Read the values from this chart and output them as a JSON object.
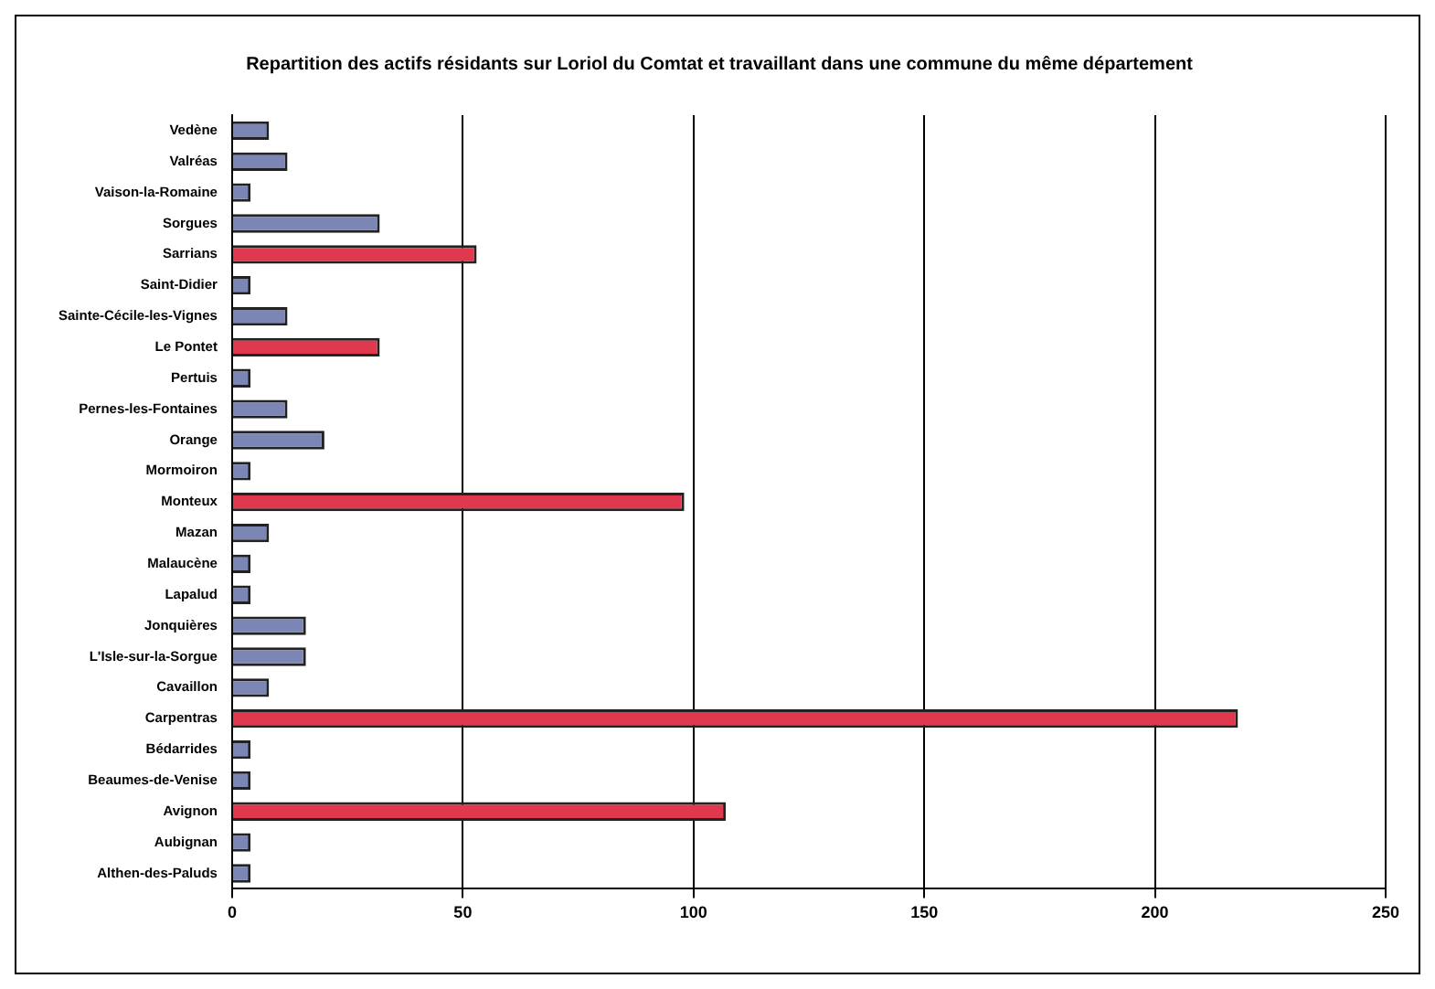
{
  "chart_data": {
    "type": "bar",
    "orientation": "horizontal",
    "title": "Repartition des actifs résidants sur Loriol du Comtat et travaillant dans une commune du même département",
    "categories": [
      "Vedène",
      "Valréas",
      "Vaison-la-Romaine",
      "Sorgues",
      "Sarrians",
      "Saint-Didier",
      "Sainte-Cécile-les-Vignes",
      "Le Pontet",
      "Pertuis",
      "Pernes-les-Fontaines",
      "Orange",
      "Mormoiron",
      "Monteux",
      "Mazan",
      "Malaucène",
      "Lapalud",
      "Jonquières",
      "L'Isle-sur-la-Sorgue",
      "Cavaillon",
      "Carpentras",
      "Bédarrides",
      "Beaumes-de-Venise",
      "Avignon",
      "Aubignan",
      "Althen-des-Paluds"
    ],
    "values": [
      8,
      12,
      4,
      32,
      53,
      4,
      12,
      32,
      4,
      12,
      20,
      4,
      98,
      8,
      4,
      4,
      16,
      16,
      8,
      218,
      4,
      4,
      107,
      4,
      4
    ],
    "colors": [
      "#7b86b5",
      "#7b86b5",
      "#7b86b5",
      "#7b86b5",
      "#e0384f",
      "#7b86b5",
      "#7b86b5",
      "#e0384f",
      "#7b86b5",
      "#7b86b5",
      "#7b86b5",
      "#7b86b5",
      "#e0384f",
      "#7b86b5",
      "#7b86b5",
      "#7b86b5",
      "#7b86b5",
      "#7b86b5",
      "#7b86b5",
      "#e0384f",
      "#7b86b5",
      "#7b86b5",
      "#e0384f",
      "#7b86b5",
      "#7b86b5"
    ],
    "xlim": [
      0,
      250
    ],
    "xticks": [
      0,
      50,
      100,
      150,
      200,
      250
    ],
    "grid": "x",
    "legend": false
  }
}
